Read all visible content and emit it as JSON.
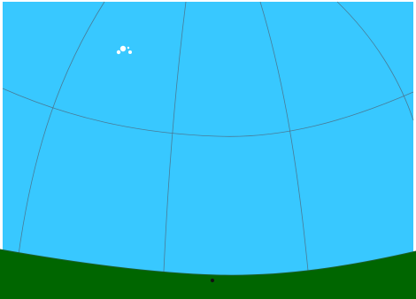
{
  "sky": {
    "background_color": "#38c8ff",
    "ground_color": "#006600",
    "grid_color": "#4b6f86",
    "text_color": "#ffffff",
    "cursor_color": "#111111"
  },
  "labels": {
    "zenith": "",
    "upper_right": "",
    "left_grid": "",
    "center_grid": "",
    "lower_center": "",
    "right_grid": "",
    "top_cluster": "",
    "top_star": "",
    "mid_right": "",
    "far_right": "",
    "left_lower": "",
    "center_lower": "",
    "right_lower": "",
    "bottom_center": "",
    "bottom_right": "",
    "horizon_marker": ""
  }
}
